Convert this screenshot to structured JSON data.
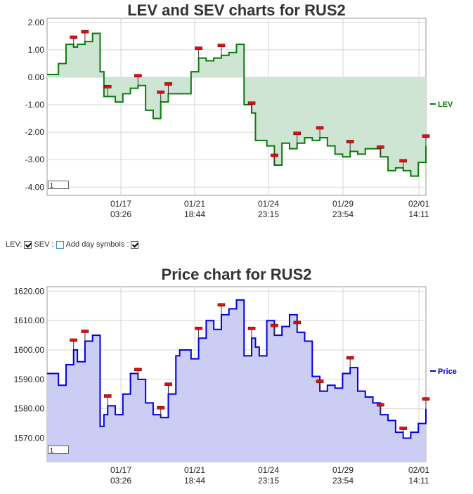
{
  "lev_chart": {
    "title": "LEV and SEV charts for RUS2",
    "legend": "LEV",
    "zoom_value": "1",
    "colors": {
      "line": "#0a7a0a",
      "fill": "#cfe5d3",
      "marker": "#e01010"
    },
    "x_ticks": [
      {
        "date": "01/17",
        "time": "03:26"
      },
      {
        "date": "01/21",
        "time": "18:44"
      },
      {
        "date": "01/24",
        "time": "23:15"
      },
      {
        "date": "01/29",
        "time": "23:54"
      },
      {
        "date": "02/01",
        "time": "14:11"
      }
    ],
    "y_ticks": [
      "2.00",
      "1.00",
      "0.00",
      "-1.00",
      "-2.00",
      "-3.00",
      "-4.00"
    ]
  },
  "controls": {
    "lev_label": "LEV:",
    "lev_checked": true,
    "sev_label": "SEV :",
    "sev_checked": false,
    "day_symbols_label": "Add day symbols :",
    "day_symbols_checked": true
  },
  "price_chart": {
    "title": "Price chart for RUS2",
    "legend": "Price",
    "zoom_value": "1",
    "colors": {
      "line": "#0000dd",
      "fill": "#cccdf5",
      "marker": "#e01010"
    },
    "x_ticks": [
      {
        "date": "01/17",
        "time": "03:26"
      },
      {
        "date": "01/21",
        "time": "18:44"
      },
      {
        "date": "01/24",
        "time": "23:15"
      },
      {
        "date": "01/29",
        "time": "23:54"
      },
      {
        "date": "02/01",
        "time": "14:11"
      }
    ],
    "y_ticks": [
      "1620.00",
      "1610.00",
      "1600.00",
      "1590.00",
      "1580.00",
      "1570.00"
    ]
  },
  "chart_data": [
    {
      "type": "area",
      "title": "LEV and SEV charts for RUS2",
      "xlabel": "",
      "ylabel": "",
      "ylim": [
        -4.3,
        2.2
      ],
      "x_tick_labels": [
        "01/17 03:26",
        "01/21 18:44",
        "01/24 23:15",
        "01/29 23:54",
        "02/01 14:11"
      ],
      "grid": true,
      "legend_position": "right",
      "series": [
        {
          "name": "LEV",
          "x": [
            0,
            0.03,
            0.05,
            0.07,
            0.08,
            0.1,
            0.12,
            0.14,
            0.15,
            0.16,
            0.18,
            0.2,
            0.22,
            0.24,
            0.26,
            0.28,
            0.3,
            0.32,
            0.34,
            0.35,
            0.38,
            0.4,
            0.42,
            0.44,
            0.46,
            0.48,
            0.5,
            0.52,
            0.54,
            0.55,
            0.56,
            0.58,
            0.6,
            0.62,
            0.64,
            0.66,
            0.68,
            0.7,
            0.72,
            0.74,
            0.76,
            0.78,
            0.8,
            0.82,
            0.84,
            0.86,
            0.88,
            0.9,
            0.92,
            0.94,
            0.96,
            0.98,
            1
          ],
          "y": [
            0.1,
            0.5,
            1.2,
            1.1,
            1.2,
            1.3,
            1.6,
            0.2,
            -0.7,
            -0.7,
            -0.9,
            -0.6,
            -0.4,
            -0.3,
            -1.2,
            -1.5,
            -0.9,
            -0.6,
            -0.6,
            -0.6,
            0.2,
            0.7,
            0.6,
            0.7,
            0.8,
            0.9,
            1.2,
            -1.0,
            -1.3,
            -2.3,
            -2.3,
            -2.5,
            -3.2,
            -2.4,
            -2.6,
            -2.4,
            -2.2,
            -2.3,
            -2.2,
            -2.5,
            -2.8,
            -2.9,
            -2.7,
            -2.8,
            -2.6,
            -2.6,
            -2.9,
            -3.4,
            -3.3,
            -3.4,
            -3.6,
            -3.1,
            -2.5
          ]
        }
      ]
    },
    {
      "type": "area",
      "title": "Price chart for RUS2",
      "xlabel": "",
      "ylabel": "",
      "ylim": [
        1562,
        1622
      ],
      "x_tick_labels": [
        "01/17 03:26",
        "01/21 18:44",
        "01/24 23:15",
        "01/29 23:54",
        "02/01 14:11"
      ],
      "grid": true,
      "legend_position": "right",
      "series": [
        {
          "name": "Price",
          "x": [
            0,
            0.03,
            0.05,
            0.07,
            0.08,
            0.1,
            0.12,
            0.14,
            0.15,
            0.16,
            0.18,
            0.2,
            0.22,
            0.24,
            0.26,
            0.28,
            0.3,
            0.32,
            0.34,
            0.35,
            0.38,
            0.4,
            0.42,
            0.44,
            0.46,
            0.48,
            0.5,
            0.52,
            0.54,
            0.55,
            0.56,
            0.58,
            0.6,
            0.62,
            0.64,
            0.66,
            0.68,
            0.7,
            0.72,
            0.74,
            0.76,
            0.78,
            0.8,
            0.82,
            0.84,
            0.86,
            0.88,
            0.9,
            0.92,
            0.94,
            0.96,
            0.98,
            1
          ],
          "y": [
            1592,
            1588,
            1595,
            1600,
            1596,
            1603,
            1605,
            1574,
            1578,
            1581,
            1578,
            1585,
            1592,
            1590,
            1582,
            1578,
            1577,
            1585,
            1598,
            1600,
            1597,
            1604,
            1610,
            1607,
            1612,
            1614,
            1617,
            1598,
            1604,
            1601,
            1598,
            1610,
            1605,
            1608,
            1612,
            1606,
            1603,
            1591,
            1586,
            1588,
            1587,
            1592,
            1594,
            1586,
            1584,
            1582,
            1578,
            1576,
            1572,
            1570,
            1572,
            1575,
            1580
          ]
        }
      ]
    }
  ]
}
